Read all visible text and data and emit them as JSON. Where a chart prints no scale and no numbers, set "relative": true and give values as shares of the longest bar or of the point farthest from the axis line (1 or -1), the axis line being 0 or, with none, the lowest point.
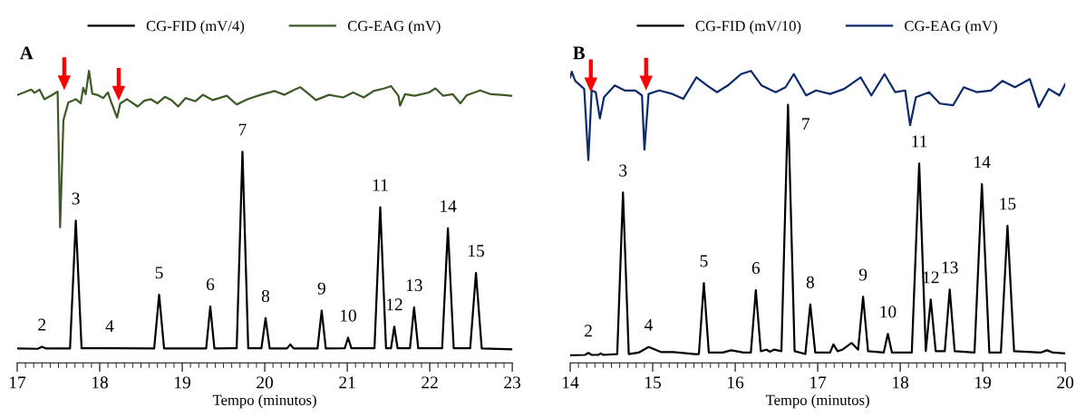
{
  "chart_data": [
    {
      "type": "line",
      "title": "A",
      "xlabel": "Tempo (minutos)",
      "relative": true,
      "legend": "top",
      "tick_labels": "x",
      "line_style": "solid",
      "xlim": [
        17,
        23
      ],
      "xticks": [
        17,
        {
          "value": 17.1,
          "label": null
        },
        {
          "value": 17.2,
          "label": null
        },
        {
          "value": 17.3,
          "label": null
        },
        {
          "value": 17.4,
          "label": null
        },
        {
          "value": 17.5,
          "label": null
        },
        {
          "value": 17.6,
          "label": null
        },
        {
          "value": 17.7,
          "label": null
        },
        {
          "value": 17.8,
          "label": null
        },
        {
          "value": 17.9,
          "label": null
        },
        18,
        {
          "value": 18.1,
          "label": null
        },
        {
          "value": 18.2,
          "label": null
        },
        {
          "value": 18.3,
          "label": null
        },
        {
          "value": 18.4,
          "label": null
        },
        {
          "value": 18.5,
          "label": null
        },
        {
          "value": 18.6,
          "label": null
        },
        {
          "value": 18.7,
          "label": null
        },
        {
          "value": 18.8,
          "label": null
        },
        {
          "value": 18.9,
          "label": null
        },
        19,
        {
          "value": 19.1,
          "label": null
        },
        {
          "value": 19.2,
          "label": null
        },
        {
          "value": 19.3,
          "label": null
        },
        {
          "value": 19.4,
          "label": null
        },
        {
          "value": 19.5,
          "label": null
        },
        {
          "value": 19.6,
          "label": null
        },
        {
          "value": 19.7,
          "label": null
        },
        {
          "value": 19.8,
          "label": null
        },
        {
          "value": 19.9,
          "label": null
        },
        20,
        {
          "value": 20.1,
          "label": null
        },
        {
          "value": 20.2,
          "label": null
        },
        {
          "value": 20.3,
          "label": null
        },
        {
          "value": 20.4,
          "label": null
        },
        {
          "value": 20.5,
          "label": null
        },
        {
          "value": 20.6,
          "label": null
        },
        {
          "value": 20.7,
          "label": null
        },
        {
          "value": 20.8,
          "label": null
        },
        {
          "value": 20.9,
          "label": null
        },
        21,
        {
          "value": 21.1,
          "label": null
        },
        {
          "value": 21.2,
          "label": null
        },
        {
          "value": 21.3,
          "label": null
        },
        {
          "value": 21.4,
          "label": null
        },
        {
          "value": 21.5,
          "label": null
        },
        {
          "value": 21.6,
          "label": null
        },
        {
          "value": 21.7,
          "label": null
        },
        {
          "value": 21.8,
          "label": null
        },
        {
          "value": 21.9,
          "label": null
        },
        22,
        {
          "value": 22.1,
          "label": null
        },
        {
          "value": 22.2,
          "label": null
        },
        {
          "value": 22.3,
          "label": null
        },
        {
          "value": 22.4,
          "label": null
        },
        {
          "value": 22.5,
          "label": null
        },
        {
          "value": 22.6,
          "label": null
        },
        {
          "value": 22.7,
          "label": null
        },
        {
          "value": 22.8,
          "label": null
        },
        {
          "value": 22.9,
          "label": null
        },
        23
      ],
      "series": [
        {
          "name": "CG-FID (mV/4)",
          "color": "#000000",
          "x": [
            17.0,
            17.25,
            17.3,
            17.35,
            17.64,
            17.71,
            17.78,
            18.12,
            18.66,
            18.72,
            18.78,
            19.29,
            19.34,
            19.39,
            19.66,
            19.73,
            19.8,
            19.96,
            20.01,
            20.06,
            20.27,
            20.31,
            20.35,
            20.64,
            20.69,
            20.74,
            20.97,
            21.01,
            21.05,
            21.33,
            21.4,
            21.47,
            21.53,
            21.57,
            21.61,
            21.76,
            21.81,
            21.86,
            22.15,
            22.22,
            22.29,
            22.49,
            22.56,
            22.63,
            23.0
          ],
          "values": [
            0.049,
            0.048,
            0.055,
            0.049,
            0.049,
            0.487,
            0.05,
            0.05,
            0.049,
            0.233,
            0.049,
            0.049,
            0.193,
            0.049,
            0.05,
            0.723,
            0.05,
            0.05,
            0.153,
            0.049,
            0.049,
            0.063,
            0.049,
            0.049,
            0.179,
            0.049,
            0.05,
            0.086,
            0.05,
            0.05,
            0.533,
            0.05,
            0.05,
            0.124,
            0.05,
            0.05,
            0.19,
            0.05,
            0.05,
            0.461,
            0.05,
            0.05,
            0.308,
            0.049,
            0.046
          ]
        },
        {
          "name": "CG-EAG (mV)",
          "color": "#3d5a27",
          "x": [
            17.0,
            17.17,
            17.21,
            17.27,
            17.33,
            17.42,
            17.49,
            17.52,
            17.56,
            17.62,
            17.71,
            17.77,
            17.8,
            17.83,
            17.87,
            17.91,
            17.98,
            18.04,
            18.1,
            18.14,
            18.21,
            18.25,
            18.33,
            18.46,
            18.54,
            18.62,
            18.7,
            18.79,
            18.87,
            18.95,
            19.04,
            19.16,
            19.25,
            19.37,
            19.54,
            19.66,
            19.79,
            19.95,
            20.12,
            20.24,
            20.37,
            20.43,
            20.53,
            20.62,
            20.78,
            20.95,
            21.07,
            21.2,
            21.32,
            21.45,
            21.53,
            21.62,
            21.64,
            21.7,
            21.82,
            21.99,
            22.07,
            22.16,
            22.28,
            22.37,
            22.45,
            22.61,
            22.74,
            22.9,
            23.0
          ],
          "values": [
            0.917,
            0.936,
            0.925,
            0.936,
            0.903,
            0.917,
            0.929,
            0.464,
            0.831,
            0.892,
            0.903,
            0.889,
            0.942,
            0.92,
            1.0,
            0.922,
            0.917,
            0.907,
            0.926,
            0.892,
            0.84,
            0.889,
            0.903,
            0.878,
            0.898,
            0.903,
            0.889,
            0.911,
            0.9,
            0.878,
            0.907,
            0.896,
            0.918,
            0.9,
            0.915,
            0.885,
            0.903,
            0.918,
            0.931,
            0.918,
            0.937,
            0.944,
            0.922,
            0.9,
            0.918,
            0.909,
            0.926,
            0.909,
            0.931,
            0.94,
            0.948,
            0.915,
            0.881,
            0.92,
            0.915,
            0.926,
            0.94,
            0.915,
            0.92,
            0.889,
            0.917,
            0.933,
            0.92,
            0.917,
            0.914
          ]
        },
        {
          "type": "scatter",
          "marker": "triangle",
          "color": "#ff0000",
          "x": [
            17.57,
            18.23
          ],
          "values": [
            0.99,
            0.954
          ]
        }
      ],
      "annotations": [
        {
          "text": "2",
          "x": 17.3,
          "y": 0.055
        },
        {
          "text": "3",
          "x": 17.71,
          "y": 0.487
        },
        {
          "text": "4",
          "x": 18.12,
          "y": 0.05
        },
        {
          "text": "5",
          "x": 18.72,
          "y": 0.233
        },
        {
          "text": "6",
          "x": 19.34,
          "y": 0.193
        },
        {
          "text": "7",
          "x": 19.73,
          "y": 0.723
        },
        {
          "text": "8",
          "x": 20.01,
          "y": 0.153
        },
        {
          "text": "9",
          "x": 20.69,
          "y": 0.179
        },
        {
          "text": "10",
          "x": 21.01,
          "y": 0.086
        },
        {
          "text": "11",
          "x": 21.4,
          "y": 0.533
        },
        {
          "text": "12",
          "x": 21.57,
          "y": 0.124
        },
        {
          "text": "13",
          "x": 21.81,
          "y": 0.19
        },
        {
          "text": "14",
          "x": 22.22,
          "y": 0.461
        },
        {
          "text": "15",
          "x": 22.56,
          "y": 0.308
        }
      ]
    },
    {
      "type": "line",
      "title": "B",
      "xlabel": "Tempo (minutos)",
      "relative": true,
      "legend": "top",
      "tick_labels": "x",
      "line_style": "solid",
      "xlim": [
        14,
        20
      ],
      "xticks": [
        14,
        {
          "value": 14.1,
          "label": null
        },
        {
          "value": 14.2,
          "label": null
        },
        {
          "value": 14.3,
          "label": null
        },
        {
          "value": 14.4,
          "label": null
        },
        {
          "value": 14.5,
          "label": null
        },
        {
          "value": 14.6,
          "label": null
        },
        {
          "value": 14.7,
          "label": null
        },
        {
          "value": 14.8,
          "label": null
        },
        {
          "value": 14.9,
          "label": null
        },
        15,
        {
          "value": 15.1,
          "label": null
        },
        {
          "value": 15.2,
          "label": null
        },
        {
          "value": 15.3,
          "label": null
        },
        {
          "value": 15.4,
          "label": null
        },
        {
          "value": 15.5,
          "label": null
        },
        {
          "value": 15.6,
          "label": null
        },
        {
          "value": 15.7,
          "label": null
        },
        {
          "value": 15.8,
          "label": null
        },
        {
          "value": 15.9,
          "label": null
        },
        16,
        {
          "value": 16.1,
          "label": null
        },
        {
          "value": 16.2,
          "label": null
        },
        {
          "value": 16.3,
          "label": null
        },
        {
          "value": 16.4,
          "label": null
        },
        {
          "value": 16.5,
          "label": null
        },
        {
          "value": 16.6,
          "label": null
        },
        {
          "value": 16.7,
          "label": null
        },
        {
          "value": 16.8,
          "label": null
        },
        {
          "value": 16.9,
          "label": null
        },
        17,
        {
          "value": 17.1,
          "label": null
        },
        {
          "value": 17.2,
          "label": null
        },
        {
          "value": 17.3,
          "label": null
        },
        {
          "value": 17.4,
          "label": null
        },
        {
          "value": 17.5,
          "label": null
        },
        {
          "value": 17.6,
          "label": null
        },
        {
          "value": 17.7,
          "label": null
        },
        {
          "value": 17.8,
          "label": null
        },
        {
          "value": 17.9,
          "label": null
        },
        18,
        {
          "value": 18.1,
          "label": null
        },
        {
          "value": 18.2,
          "label": null
        },
        {
          "value": 18.3,
          "label": null
        },
        {
          "value": 18.4,
          "label": null
        },
        {
          "value": 18.5,
          "label": null
        },
        {
          "value": 18.6,
          "label": null
        },
        {
          "value": 18.7,
          "label": null
        },
        {
          "value": 18.8,
          "label": null
        },
        {
          "value": 18.9,
          "label": null
        },
        19,
        {
          "value": 19.1,
          "label": null
        },
        {
          "value": 19.2,
          "label": null
        },
        {
          "value": 19.3,
          "label": null
        },
        {
          "value": 19.4,
          "label": null
        },
        {
          "value": 19.5,
          "label": null
        },
        {
          "value": 19.6,
          "label": null
        },
        {
          "value": 19.7,
          "label": null
        },
        {
          "value": 19.8,
          "label": null
        },
        {
          "value": 19.9,
          "label": null
        },
        20
      ],
      "series": [
        {
          "name": "CG-FID (mV/10)",
          "color": "#000000",
          "x": [
            14.0,
            14.18,
            14.22,
            14.26,
            14.34,
            14.37,
            14.4,
            14.57,
            14.64,
            14.71,
            14.83,
            14.95,
            15.1,
            15.25,
            15.5,
            15.56,
            15.62,
            15.68,
            15.85,
            15.95,
            16.1,
            16.19,
            16.25,
            16.31,
            16.38,
            16.42,
            16.47,
            16.56,
            16.64,
            16.72,
            16.85,
            16.91,
            16.97,
            17.15,
            17.19,
            17.24,
            17.3,
            17.41,
            17.49,
            17.55,
            17.61,
            17.8,
            17.85,
            17.9,
            18.14,
            18.23,
            18.31,
            18.37,
            18.43,
            18.54,
            18.6,
            18.66,
            18.9,
            18.99,
            19.08,
            19.22,
            19.3,
            19.38,
            19.7,
            19.78,
            19.85,
            20.0
          ],
          "values": [
            0.026,
            0.027,
            0.034,
            0.027,
            0.027,
            0.032,
            0.027,
            0.03,
            0.583,
            0.03,
            0.035,
            0.054,
            0.037,
            0.037,
            0.03,
            0.03,
            0.273,
            0.035,
            0.035,
            0.043,
            0.035,
            0.035,
            0.249,
            0.04,
            0.045,
            0.038,
            0.045,
            0.04,
            0.884,
            0.04,
            0.03,
            0.2,
            0.035,
            0.035,
            0.063,
            0.04,
            0.045,
            0.068,
            0.045,
            0.226,
            0.04,
            0.035,
            0.099,
            0.035,
            0.035,
            0.683,
            0.04,
            0.217,
            0.04,
            0.04,
            0.251,
            0.04,
            0.035,
            0.612,
            0.035,
            0.035,
            0.469,
            0.04,
            0.035,
            0.043,
            0.035,
            0.032
          ]
        },
        {
          "name": "CG-EAG (mV)",
          "color": "#0d2a6b",
          "x": [
            14.0,
            14.02,
            14.06,
            14.17,
            14.22,
            14.26,
            14.31,
            14.36,
            14.41,
            14.54,
            14.66,
            14.79,
            14.87,
            14.9,
            14.95,
            15.08,
            15.24,
            15.37,
            15.53,
            15.66,
            15.78,
            15.91,
            16.07,
            16.19,
            16.32,
            16.49,
            16.61,
            16.71,
            16.86,
            16.98,
            17.15,
            17.32,
            17.52,
            17.65,
            17.81,
            17.94,
            18.06,
            18.12,
            18.19,
            18.35,
            18.48,
            18.64,
            18.77,
            18.93,
            19.1,
            19.24,
            19.39,
            19.57,
            19.68,
            19.8,
            19.93,
            20.0
          ],
          "values": [
            0.978,
            0.997,
            0.966,
            0.938,
            0.694,
            0.933,
            0.927,
            0.837,
            0.91,
            0.95,
            0.933,
            0.933,
            0.916,
            0.73,
            0.921,
            0.933,
            0.921,
            0.904,
            0.978,
            0.95,
            0.927,
            0.95,
            0.989,
            1.0,
            0.95,
            0.927,
            0.944,
            0.989,
            0.916,
            0.933,
            0.921,
            0.938,
            0.978,
            0.916,
            0.989,
            0.927,
            0.933,
            0.814,
            0.91,
            0.927,
            0.888,
            0.882,
            0.944,
            0.927,
            0.933,
            0.966,
            0.944,
            0.972,
            0.876,
            0.938,
            0.916,
            0.955
          ]
        },
        {
          "type": "scatter",
          "marker": "triangle",
          "color": "#ff0000",
          "x": [
            14.25,
            14.92
          ],
          "values": [
            0.983,
            0.989
          ]
        }
      ],
      "annotations": [
        {
          "text": "2",
          "x": 14.22,
          "y": 0.034
        },
        {
          "text": "3",
          "x": 14.64,
          "y": 0.583
        },
        {
          "text": "4",
          "x": 14.95,
          "y": 0.054
        },
        {
          "text": "5",
          "x": 15.62,
          "y": 0.273
        },
        {
          "text": "6",
          "x": 16.25,
          "y": 0.249
        },
        {
          "text": "7",
          "x": 16.64,
          "y": 0.884
        },
        {
          "text": "8",
          "x": 16.91,
          "y": 0.2
        },
        {
          "text": "9",
          "x": 17.55,
          "y": 0.226
        },
        {
          "text": "10",
          "x": 17.85,
          "y": 0.099
        },
        {
          "text": "11",
          "x": 18.23,
          "y": 0.683
        },
        {
          "text": "12",
          "x": 18.37,
          "y": 0.217
        },
        {
          "text": "13",
          "x": 18.6,
          "y": 0.251
        },
        {
          "text": "14",
          "x": 18.99,
          "y": 0.612
        },
        {
          "text": "15",
          "x": 19.3,
          "y": 0.469
        }
      ]
    }
  ]
}
